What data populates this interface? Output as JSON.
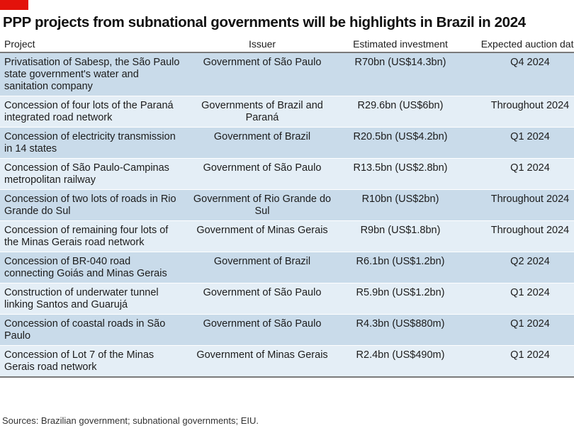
{
  "colors": {
    "accent": "#e3120b",
    "band_odd": "#c9dbea",
    "band_even": "#e4eef6"
  },
  "title": "PPP projects from subnational governments will be highlights in Brazil in 2024",
  "chart_data": {
    "type": "table",
    "columns": [
      "Project",
      "Issuer",
      "Estimated investment",
      "Expected auction date"
    ],
    "rows": [
      [
        "Privatisation of Sabesp, the São Paulo state government's water and sanitation company",
        "Government of São Paulo",
        "R70bn (US$14.3bn)",
        "Q4 2024"
      ],
      [
        "Concession of four lots of the Paraná integrated road network",
        "Governments of Brazil and Paraná",
        "R29.6bn (US$6bn)",
        "Throughout 2024"
      ],
      [
        "Concession of electricity transmission in 14 states",
        "Government of Brazil",
        "R20.5bn (US$4.2bn)",
        "Q1 2024"
      ],
      [
        "Concession of São Paulo-Campinas metropolitan railway",
        "Government of São Paulo",
        "R13.5bn (US$2.8bn)",
        "Q1 2024"
      ],
      [
        "Concession of two lots of roads in Rio Grande do Sul",
        "Government of Rio Grande do Sul",
        "R10bn (US$2bn)",
        "Throughout 2024"
      ],
      [
        "Concession of remaining four lots of the Minas Gerais road network",
        "Government of Minas Gerais",
        "R9bn (US$1.8bn)",
        "Throughout 2024"
      ],
      [
        "Concession of BR-040 road connecting Goiás and Minas Gerais",
        "Government of Brazil",
        "R6.1bn (US$1.2bn)",
        "Q2 2024"
      ],
      [
        "Construction of underwater tunnel linking Santos and Guarujá",
        "Government of São Paulo",
        "R5.9bn (US$1.2bn)",
        "Q1 2024"
      ],
      [
        "Concession of coastal roads in São Paulo",
        "Government of São Paulo",
        "R4.3bn (US$880m)",
        "Q1 2024"
      ],
      [
        "Concession of Lot 7 of the Minas Gerais road network",
        "Government of Minas Gerais",
        "R2.4bn (US$490m)",
        "Q1 2024"
      ]
    ]
  },
  "sources": "Sources: Brazilian government; subnational governments; EIU."
}
